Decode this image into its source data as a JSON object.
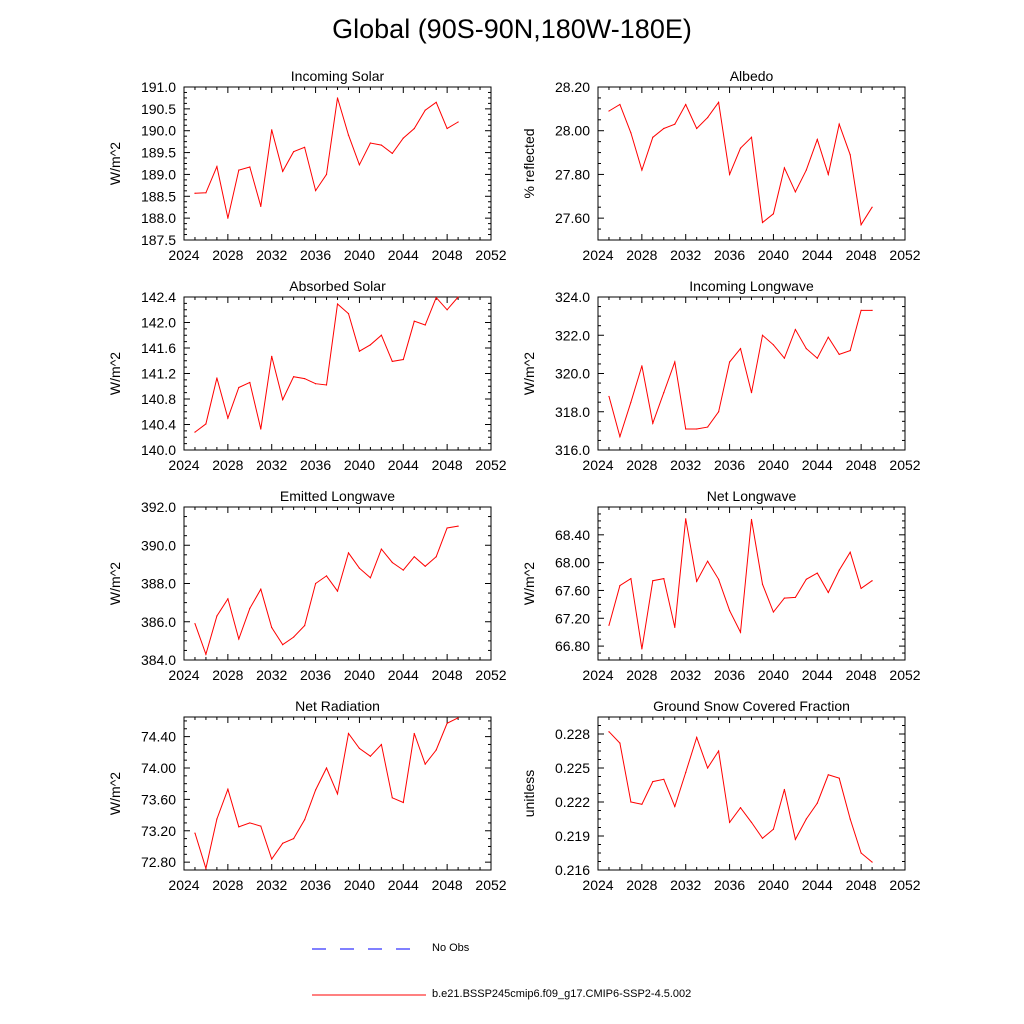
{
  "title": "Global (90S-90N,180W-180E)",
  "colors": {
    "series": "#ff0000",
    "obs": "#0000ff",
    "axis": "#000000"
  },
  "legend": {
    "obs_label": "No Obs",
    "model_label": "b.e21.BSSP245cmip6.f09_g17.CMIP6-SSP2-4.5.002"
  },
  "chart_data": [
    {
      "type": "line",
      "title": "Incoming Solar",
      "ylabel": "W/m^2",
      "xlim": [
        2024,
        2052
      ],
      "ylim": [
        187.5,
        191.0
      ],
      "xticks": [
        2024,
        2028,
        2032,
        2036,
        2040,
        2044,
        2048,
        2052
      ],
      "yticks": [
        187.5,
        188.0,
        188.5,
        189.0,
        189.5,
        190.0,
        190.5,
        191.0
      ],
      "ytick_labels": [
        "187.5",
        "188.0",
        "188.5",
        "189.0",
        "189.5",
        "190.0",
        "190.5",
        "191.0"
      ],
      "x": [
        2025,
        2026,
        2027,
        2028,
        2029,
        2030,
        2031,
        2032,
        2033,
        2034,
        2035,
        2036,
        2037,
        2038,
        2039,
        2040,
        2041,
        2042,
        2043,
        2044,
        2045,
        2046,
        2047,
        2048,
        2049
      ],
      "values": [
        188.57,
        188.58,
        189.18,
        188.0,
        189.1,
        189.17,
        188.27,
        190.02,
        189.07,
        189.52,
        189.62,
        188.63,
        189.0,
        190.75,
        189.9,
        189.22,
        189.72,
        189.67,
        189.48,
        189.83,
        190.05,
        190.47,
        190.65,
        190.05,
        190.2
      ]
    },
    {
      "type": "line",
      "title": "Albedo",
      "ylabel": "% reflected",
      "xlim": [
        2024,
        2052
      ],
      "ylim": [
        27.5,
        28.2
      ],
      "xticks": [
        2024,
        2028,
        2032,
        2036,
        2040,
        2044,
        2048,
        2052
      ],
      "yticks": [
        27.6,
        27.8,
        28.0,
        28.2
      ],
      "ytick_labels": [
        "27.60",
        "27.80",
        "28.00",
        "28.20"
      ],
      "x": [
        2025,
        2026,
        2027,
        2028,
        2029,
        2030,
        2031,
        2032,
        2033,
        2034,
        2035,
        2036,
        2037,
        2038,
        2039,
        2040,
        2041,
        2042,
        2043,
        2044,
        2045,
        2046,
        2047,
        2048,
        2049
      ],
      "values": [
        28.09,
        28.12,
        27.99,
        27.82,
        27.97,
        28.01,
        28.03,
        28.12,
        28.01,
        28.06,
        28.13,
        27.8,
        27.92,
        27.97,
        27.58,
        27.62,
        27.83,
        27.72,
        27.82,
        27.96,
        27.8,
        28.03,
        27.89,
        27.57,
        27.65
      ]
    },
    {
      "type": "line",
      "title": "Absorbed Solar",
      "ylabel": "W/m^2",
      "xlim": [
        2024,
        2052
      ],
      "ylim": [
        140.0,
        142.4
      ],
      "xticks": [
        2024,
        2028,
        2032,
        2036,
        2040,
        2044,
        2048,
        2052
      ],
      "yticks": [
        140.0,
        140.4,
        140.8,
        141.2,
        141.6,
        142.0,
        142.4
      ],
      "ytick_labels": [
        "140.0",
        "140.4",
        "140.8",
        "141.2",
        "141.6",
        "142.0",
        "142.4"
      ],
      "x": [
        2025,
        2026,
        2027,
        2028,
        2029,
        2030,
        2031,
        2032,
        2033,
        2034,
        2035,
        2036,
        2037,
        2038,
        2039,
        2040,
        2041,
        2042,
        2043,
        2044,
        2045,
        2046,
        2047,
        2048,
        2049
      ],
      "values": [
        140.28,
        140.41,
        141.13,
        140.5,
        140.98,
        141.06,
        140.33,
        141.47,
        140.79,
        141.15,
        141.12,
        141.04,
        141.02,
        142.29,
        142.14,
        141.55,
        141.65,
        141.8,
        141.39,
        141.42,
        142.02,
        141.96,
        142.39,
        142.2,
        142.4
      ]
    },
    {
      "type": "line",
      "title": "Incoming Longwave",
      "ylabel": "W/m^2",
      "xlim": [
        2024,
        2052
      ],
      "ylim": [
        316.0,
        324.0
      ],
      "xticks": [
        2024,
        2028,
        2032,
        2036,
        2040,
        2044,
        2048,
        2052
      ],
      "yticks": [
        316.0,
        318.0,
        320.0,
        322.0,
        324.0
      ],
      "ytick_labels": [
        "316.0",
        "318.0",
        "320.0",
        "322.0",
        "324.0"
      ],
      "x": [
        2025,
        2026,
        2027,
        2028,
        2029,
        2030,
        2031,
        2032,
        2033,
        2034,
        2035,
        2036,
        2037,
        2038,
        2039,
        2040,
        2041,
        2042,
        2043,
        2044,
        2045,
        2046,
        2047,
        2048,
        2049
      ],
      "values": [
        318.8,
        316.7,
        318.5,
        320.4,
        317.4,
        319.0,
        320.6,
        317.1,
        317.1,
        317.2,
        318.0,
        320.6,
        321.3,
        319.0,
        322.0,
        321.5,
        320.8,
        322.3,
        321.3,
        320.8,
        321.9,
        321.0,
        321.2,
        323.3,
        323.3
      ]
    },
    {
      "type": "line",
      "title": "Emitted Longwave",
      "ylabel": "W/m^2",
      "xlim": [
        2024,
        2052
      ],
      "ylim": [
        384.0,
        392.0
      ],
      "xticks": [
        2024,
        2028,
        2032,
        2036,
        2040,
        2044,
        2048,
        2052
      ],
      "yticks": [
        384.0,
        386.0,
        388.0,
        390.0,
        392.0
      ],
      "ytick_labels": [
        "384.0",
        "386.0",
        "388.0",
        "390.0",
        "392.0"
      ],
      "x": [
        2025,
        2026,
        2027,
        2028,
        2029,
        2030,
        2031,
        2032,
        2033,
        2034,
        2035,
        2036,
        2037,
        2038,
        2039,
        2040,
        2041,
        2042,
        2043,
        2044,
        2045,
        2046,
        2047,
        2048,
        2049
      ],
      "values": [
        385.9,
        384.3,
        386.3,
        387.2,
        385.1,
        386.7,
        387.7,
        385.7,
        384.8,
        385.2,
        385.8,
        388.0,
        388.4,
        387.6,
        389.6,
        388.8,
        388.3,
        389.8,
        389.1,
        388.7,
        389.4,
        388.9,
        389.4,
        390.9,
        391.0
      ]
    },
    {
      "type": "line",
      "title": "Net Longwave",
      "ylabel": "W/m^2",
      "xlim": [
        2024,
        2052
      ],
      "ylim": [
        66.6,
        68.8
      ],
      "xticks": [
        2024,
        2028,
        2032,
        2036,
        2040,
        2044,
        2048,
        2052
      ],
      "yticks": [
        66.8,
        67.2,
        67.6,
        68.0,
        68.4
      ],
      "ytick_labels": [
        "66.80",
        "67.20",
        "67.60",
        "68.00",
        "68.40"
      ],
      "x": [
        2025,
        2026,
        2027,
        2028,
        2029,
        2030,
        2031,
        2032,
        2033,
        2034,
        2035,
        2036,
        2037,
        2038,
        2039,
        2040,
        2041,
        2042,
        2043,
        2044,
        2045,
        2046,
        2047,
        2048,
        2049
      ],
      "values": [
        67.1,
        67.67,
        67.77,
        66.76,
        67.74,
        67.77,
        67.07,
        68.63,
        67.73,
        68.02,
        67.76,
        67.31,
        67.0,
        68.62,
        67.69,
        67.29,
        67.49,
        67.5,
        67.76,
        67.85,
        67.57,
        67.89,
        68.15,
        67.63,
        67.74
      ]
    },
    {
      "type": "line",
      "title": "Net Radiation",
      "ylabel": "W/m^2",
      "xlim": [
        2024,
        2052
      ],
      "ylim": [
        72.7,
        74.65
      ],
      "xticks": [
        2024,
        2028,
        2032,
        2036,
        2040,
        2044,
        2048,
        2052
      ],
      "yticks": [
        72.8,
        73.2,
        73.6,
        74.0,
        74.4
      ],
      "ytick_labels": [
        "72.80",
        "73.20",
        "73.60",
        "74.00",
        "74.40"
      ],
      "x": [
        2025,
        2026,
        2027,
        2028,
        2029,
        2030,
        2031,
        2032,
        2033,
        2034,
        2035,
        2036,
        2037,
        2038,
        2039,
        2040,
        2041,
        2042,
        2043,
        2044,
        2045,
        2046,
        2047,
        2048,
        2049
      ],
      "values": [
        73.17,
        72.72,
        73.35,
        73.73,
        73.25,
        73.3,
        73.26,
        72.84,
        73.04,
        73.1,
        73.34,
        73.72,
        74.0,
        73.67,
        74.44,
        74.25,
        74.15,
        74.3,
        73.62,
        73.56,
        74.44,
        74.05,
        74.23,
        74.57,
        74.64
      ]
    },
    {
      "type": "line",
      "title": "Ground Snow Covered Fraction",
      "ylabel": "unitless",
      "xlim": [
        2024,
        2052
      ],
      "ylim": [
        0.216,
        0.2295
      ],
      "xticks": [
        2024,
        2028,
        2032,
        2036,
        2040,
        2044,
        2048,
        2052
      ],
      "yticks": [
        0.216,
        0.219,
        0.222,
        0.225,
        0.228
      ],
      "ytick_labels": [
        "0.216",
        "0.219",
        "0.222",
        "0.225",
        "0.228"
      ],
      "x": [
        2025,
        2026,
        2027,
        2028,
        2029,
        2030,
        2031,
        2032,
        2033,
        2034,
        2035,
        2036,
        2037,
        2038,
        2039,
        2040,
        2041,
        2042,
        2043,
        2044,
        2045,
        2046,
        2047,
        2048,
        2049
      ],
      "values": [
        0.2282,
        0.2272,
        0.222,
        0.2218,
        0.2238,
        0.224,
        0.2216,
        0.2246,
        0.2277,
        0.225,
        0.2265,
        0.2202,
        0.2215,
        0.2202,
        0.2188,
        0.2196,
        0.2231,
        0.2187,
        0.2205,
        0.2219,
        0.2244,
        0.2241,
        0.2205,
        0.2175,
        0.2167
      ]
    }
  ]
}
